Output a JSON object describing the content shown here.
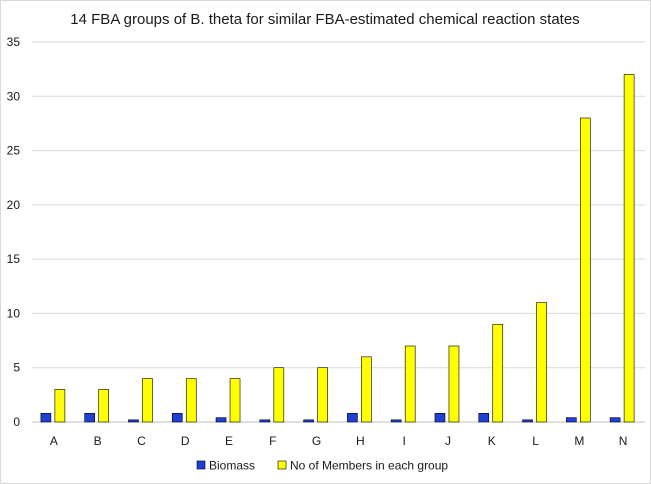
{
  "chart_data": {
    "type": "bar",
    "title": "14 FBA groups of B. theta for similar FBA-estimated chemical reaction states",
    "categories": [
      "A",
      "B",
      "C",
      "D",
      "E",
      "F",
      "G",
      "H",
      "I",
      "J",
      "K",
      "L",
      "M",
      "N"
    ],
    "series": [
      {
        "name": "Biomass",
        "color": "#1f3fd6",
        "values": [
          0.8,
          0.8,
          0.2,
          0.8,
          0.4,
          0.2,
          0.2,
          0.8,
          0.2,
          0.8,
          0.8,
          0.2,
          0.4,
          0.4
        ]
      },
      {
        "name": "No of Members in each group",
        "color": "#ffff00",
        "values": [
          3,
          3,
          4,
          4,
          4,
          5,
          5,
          6,
          7,
          7,
          9,
          11,
          28,
          32
        ]
      }
    ],
    "yticks": [
      "0",
      "5",
      "10",
      "15",
      "20",
      "25",
      "30",
      "35"
    ],
    "ylim": [
      0,
      35
    ],
    "grid": true,
    "legend_position": "bottom",
    "xlabel": "",
    "ylabel": ""
  }
}
